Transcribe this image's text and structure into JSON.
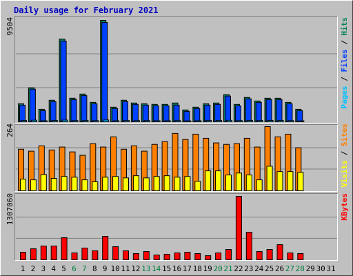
{
  "chart_data": [
    {
      "type": "bar",
      "title": "Daily usage for February 2021",
      "categories": [
        "1",
        "2",
        "3",
        "4",
        "5",
        "6",
        "7",
        "8",
        "9",
        "10",
        "11",
        "12",
        "13",
        "14",
        "15",
        "16",
        "17",
        "18",
        "19",
        "20",
        "21",
        "22",
        "23",
        "24",
        "25",
        "26",
        "27",
        "28",
        "29",
        "30",
        "31"
      ],
      "category_colors": [
        "#000000",
        "#000000",
        "#000000",
        "#000000",
        "#000000",
        "#008040",
        "#008040",
        "#000000",
        "#000000",
        "#000000",
        "#000000",
        "#000000",
        "#008040",
        "#008040",
        "#000000",
        "#000000",
        "#000000",
        "#000000",
        "#000000",
        "#008040",
        "#008040",
        "#000000",
        "#000000",
        "#000000",
        "#000000",
        "#000000",
        "#008040",
        "#008040",
        "#000000",
        "#000000",
        "#000000"
      ],
      "legend_separator": " / ",
      "ylim": [
        0,
        9504
      ],
      "yticks": [
        9504
      ],
      "series": [
        {
          "name": "Hits",
          "color": "#00805c",
          "values": [
            1690,
            3190,
            1170,
            2020,
            7750,
            2210,
            2600,
            1820,
            9504,
            1370,
            2020,
            1760,
            1690,
            1630,
            1630,
            1760,
            1110,
            1370,
            1690,
            1760,
            2540,
            1630,
            2280,
            1950,
            2210,
            2210,
            1820,
            1170,
            null,
            null,
            null
          ]
        },
        {
          "name": "Files",
          "color": "#0040ff",
          "values": [
            1560,
            3060,
            1040,
            1890,
            7560,
            2080,
            2450,
            1690,
            9310,
            1240,
            1890,
            1630,
            1560,
            1500,
            1500,
            1560,
            980,
            1240,
            1560,
            1630,
            2410,
            1500,
            2150,
            1820,
            2080,
            2080,
            1690,
            1040,
            null,
            null,
            null
          ]
        },
        {
          "name": "Pages",
          "color": "#00c0ff",
          "values": [
            120,
            150,
            100,
            130,
            160,
            110,
            120,
            110,
            170,
            100,
            120,
            110,
            110,
            100,
            100,
            110,
            90,
            100,
            120,
            120,
            140,
            110,
            130,
            120,
            130,
            130,
            110,
            90,
            null,
            null,
            null
          ]
        }
      ]
    },
    {
      "type": "bar",
      "legend_separator": " / ",
      "ylim": [
        0,
        264
      ],
      "yticks": [
        264
      ],
      "series": [
        {
          "name": "Sites",
          "color": "#ff8000",
          "values": [
            171,
            163,
            185,
            168,
            180,
            160,
            146,
            194,
            180,
            222,
            171,
            185,
            163,
            191,
            202,
            236,
            211,
            233,
            216,
            197,
            191,
            194,
            216,
            180,
            264,
            222,
            233,
            177,
            null,
            null,
            null
          ]
        },
        {
          "name": "Visits",
          "color": "#ffff00",
          "values": [
            48,
            45,
            67,
            51,
            59,
            56,
            45,
            37,
            56,
            59,
            53,
            62,
            53,
            59,
            62,
            56,
            59,
            39,
            82,
            82,
            65,
            73,
            65,
            45,
            101,
            79,
            79,
            76,
            null,
            null,
            null
          ]
        }
      ]
    },
    {
      "type": "bar",
      "ylim": [
        0,
        1307060
      ],
      "yticks": [
        1307060
      ],
      "series": [
        {
          "name": "KBytes",
          "color": "#ff0000",
          "values": [
            156000,
            227000,
            284000,
            284000,
            455000,
            142000,
            242000,
            185000,
            483000,
            270000,
            185000,
            128000,
            170000,
            99000,
            114000,
            142000,
            156000,
            128000,
            85000,
            142000,
            213000,
            1307060,
            568000,
            170000,
            213000,
            312000,
            142000,
            128000,
            null,
            null,
            null
          ]
        }
      ]
    }
  ]
}
